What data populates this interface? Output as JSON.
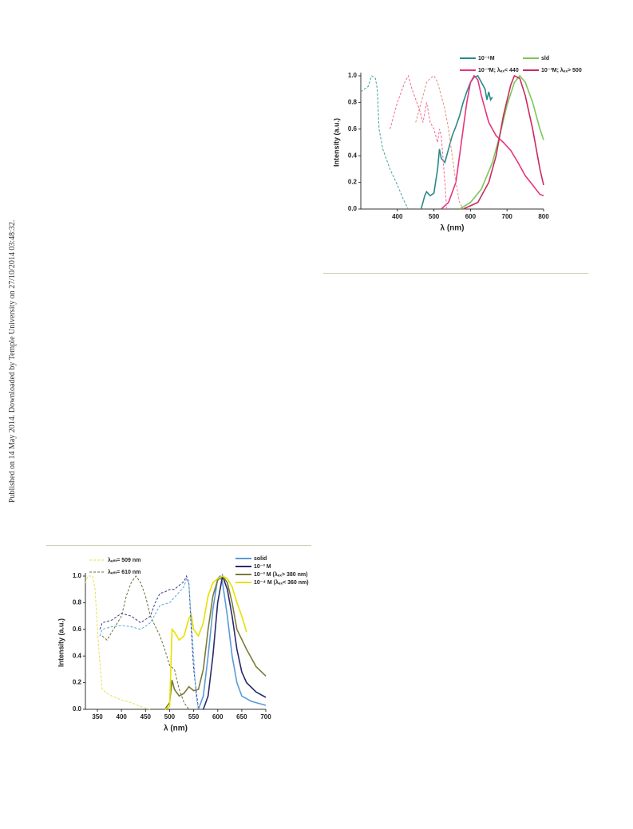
{
  "side_note": "Published on 14 May 2014. Downloaded by Temple University on 27/10/2014 03:48:32.",
  "chart_data": [
    {
      "type": "line",
      "xlabel": "λ (nm)",
      "ylabel": "Intensity (a.u.)",
      "xlim": [
        300,
        800
      ],
      "xticks": [
        400,
        500,
        600,
        700,
        800
      ],
      "ylim": [
        0,
        1
      ],
      "yticks": [
        {
          "value": 0,
          "label": "0.0"
        },
        0.2,
        0.4,
        0.6,
        0.8,
        {
          "value": 1,
          "label": "1.0"
        }
      ],
      "series": [
        {
          "name": "10⁻⁶M",
          "color": "#2a8a8a",
          "style": "solid",
          "x": [
            465,
            475,
            480,
            490,
            500,
            510,
            515,
            520,
            530,
            540,
            550,
            560,
            570,
            580,
            590,
            600,
            610,
            620,
            630,
            640,
            645,
            650,
            655,
            660
          ],
          "values": [
            0,
            0.1,
            0.13,
            0.1,
            0.12,
            0.3,
            0.45,
            0.38,
            0.35,
            0.45,
            0.55,
            0.62,
            0.7,
            0.8,
            0.88,
            0.95,
            0.99,
            1.0,
            0.95,
            0.9,
            0.82,
            0.88,
            0.82,
            0.84
          ]
        },
        {
          "name": "sld",
          "color": "#7cc75a",
          "style": "solid",
          "x": [
            570,
            600,
            630,
            660,
            680,
            700,
            720,
            735,
            750,
            770,
            790,
            800
          ],
          "values": [
            0,
            0.05,
            0.15,
            0.35,
            0.55,
            0.78,
            0.95,
            1.0,
            0.95,
            0.8,
            0.6,
            0.52
          ]
        },
        {
          "name": "10⁻³M; λₑₓ< 440",
          "color": "#e8337e",
          "style": "solid",
          "x": [
            520,
            540,
            560,
            570,
            580,
            590,
            600,
            610,
            620,
            630,
            650,
            670,
            690,
            710,
            730,
            750,
            770,
            790,
            800
          ],
          "values": [
            0,
            0.05,
            0.2,
            0.4,
            0.6,
            0.8,
            0.95,
            1.0,
            0.97,
            0.85,
            0.65,
            0.55,
            0.5,
            0.44,
            0.35,
            0.25,
            0.18,
            0.11,
            0.1
          ]
        },
        {
          "name": "10⁻³M; λₑₓ> 500",
          "color": "#c92a5e",
          "style": "solid",
          "x": [
            580,
            620,
            650,
            670,
            690,
            710,
            720,
            735,
            750,
            770,
            790,
            800
          ],
          "values": [
            0,
            0.05,
            0.2,
            0.4,
            0.7,
            0.93,
            1.0,
            0.98,
            0.85,
            0.6,
            0.3,
            0.18
          ]
        },
        {
          "color": "#4aa0a0",
          "style": "dashed",
          "x": [
            300,
            310,
            320,
            330,
            340,
            345,
            350,
            360,
            380,
            400,
            420,
            430
          ],
          "values": [
            0.88,
            0.9,
            0.92,
            1.0,
            0.98,
            0.9,
            0.6,
            0.45,
            0.3,
            0.18,
            0.05,
            0
          ]
        },
        {
          "color": "#f06a9a",
          "style": "dashed",
          "x": [
            380,
            400,
            420,
            430,
            440,
            460,
            470,
            480,
            490,
            500,
            510,
            515,
            520,
            530,
            535
          ],
          "values": [
            0.6,
            0.8,
            0.95,
            1.0,
            0.9,
            0.75,
            0.65,
            0.8,
            0.65,
            0.6,
            0.5,
            0.6,
            0.55,
            0.2,
            0
          ]
        },
        {
          "color": "#e0907a",
          "style": "dashed",
          "x": [
            450,
            460,
            470,
            480,
            490,
            500,
            510,
            520,
            530,
            540,
            550,
            560,
            570,
            580
          ],
          "values": [
            0.65,
            0.75,
            0.85,
            0.95,
            0.98,
            1.0,
            0.95,
            0.85,
            0.75,
            0.6,
            0.4,
            0.2,
            0.05,
            0
          ]
        }
      ]
    },
    {
      "type": "line",
      "xlabel": "λ (nm)",
      "ylabel": "Intensity (a.u.)",
      "xlim": [
        325,
        700
      ],
      "xticks": [
        350,
        400,
        450,
        500,
        550,
        600,
        650,
        700
      ],
      "ylim": [
        0,
        1
      ],
      "yticks": [
        {
          "value": 0,
          "label": "0.0"
        },
        0.2,
        0.4,
        0.6,
        0.8,
        {
          "value": 1,
          "label": "1.0"
        }
      ],
      "series": [
        {
          "name": "λₑₘ= 509 nm",
          "color": "#e6e04a",
          "style": "dashed",
          "x": [
            325,
            330,
            340,
            345,
            350,
            355,
            360,
            370,
            380,
            400,
            420,
            440,
            460
          ],
          "values": [
            0.95,
            1.0,
            1.0,
            0.9,
            0.6,
            0.35,
            0.15,
            0.12,
            0.1,
            0.07,
            0.05,
            0.02,
            0
          ]
        },
        {
          "name": "λₑₘ= 610 nm",
          "color": "#6e6e3a",
          "style": "dashed",
          "x": [
            360,
            370,
            380,
            400,
            410,
            420,
            430,
            440,
            450,
            460,
            480,
            490,
            500,
            510,
            520,
            530,
            540
          ],
          "values": [
            0.55,
            0.52,
            0.58,
            0.7,
            0.85,
            0.95,
            1.0,
            0.95,
            0.85,
            0.7,
            0.55,
            0.45,
            0.33,
            0.3,
            0.15,
            0.05,
            0
          ]
        },
        {
          "name": "solid",
          "color": "#5b9bd5",
          "style": "solid",
          "x": [
            560,
            570,
            580,
            590,
            600,
            605,
            610,
            620,
            630,
            640,
            650,
            670,
            700
          ],
          "values": [
            0,
            0.1,
            0.4,
            0.75,
            0.98,
            1.0,
            0.95,
            0.7,
            0.4,
            0.2,
            0.1,
            0.06,
            0.03
          ]
        },
        {
          "name": "10⁻³ M",
          "color": "#2a2a6e",
          "style": "solid",
          "x": [
            570,
            580,
            590,
            600,
            610,
            620,
            630,
            640,
            650,
            660,
            680,
            700
          ],
          "values": [
            0,
            0.1,
            0.4,
            0.8,
            1.0,
            0.9,
            0.7,
            0.45,
            0.28,
            0.2,
            0.13,
            0.09
          ]
        },
        {
          "name": "10⁻³ M (λₑₓ> 380 nm)",
          "color": "#7a7a3a",
          "style": "solid",
          "x": [
            490,
            500,
            505,
            510,
            520,
            530,
            540,
            550,
            560,
            570,
            580,
            590,
            600,
            610,
            620,
            630,
            640,
            660,
            680,
            700
          ],
          "values": [
            0,
            0.05,
            0.22,
            0.15,
            0.1,
            0.12,
            0.17,
            0.14,
            0.15,
            0.3,
            0.6,
            0.85,
            0.97,
            1.0,
            0.95,
            0.8,
            0.6,
            0.45,
            0.32,
            0.25
          ]
        },
        {
          "name": "10⁻⁴ M (λₑₓ< 360 nm)",
          "color": "#e8e000",
          "style": "solid",
          "x": [
            490,
            500,
            505,
            510,
            520,
            530,
            540,
            545,
            550,
            560,
            570,
            580,
            590,
            600,
            610,
            620,
            630,
            640,
            650,
            660
          ],
          "values": [
            0,
            0.02,
            0.6,
            0.58,
            0.52,
            0.55,
            0.68,
            0.71,
            0.6,
            0.55,
            0.65,
            0.85,
            0.95,
            0.98,
            1.0,
            0.98,
            0.92,
            0.8,
            0.7,
            0.58
          ]
        },
        {
          "color": "#3a3a90",
          "style": "dashed",
          "x": [
            355,
            360,
            380,
            400,
            420,
            440,
            460,
            470,
            480,
            490,
            500,
            510,
            520,
            530,
            535,
            540,
            545,
            550,
            560
          ],
          "values": [
            0.6,
            0.65,
            0.67,
            0.72,
            0.7,
            0.65,
            0.7,
            0.8,
            0.87,
            0.88,
            0.9,
            0.9,
            0.93,
            0.96,
            1.0,
            0.95,
            0.6,
            0.3,
            0
          ]
        },
        {
          "color": "#5aa8d8",
          "style": "dashed",
          "x": [
            355,
            360,
            380,
            400,
            420,
            440,
            460,
            480,
            500,
            520,
            530,
            535,
            540,
            550,
            555,
            560
          ],
          "values": [
            0.55,
            0.6,
            0.62,
            0.63,
            0.62,
            0.6,
            0.65,
            0.78,
            0.8,
            0.88,
            0.92,
            0.98,
            0.95,
            0.4,
            0.1,
            0
          ]
        }
      ]
    }
  ]
}
